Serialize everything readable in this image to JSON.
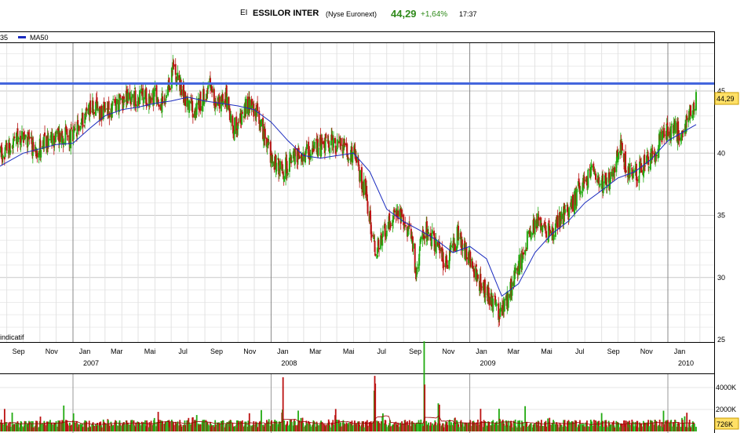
{
  "header": {
    "code": "EI",
    "name": "ESSILOR INTER",
    "market": "(Nyse Euronext)",
    "price": "44,29",
    "change": "+1,64%",
    "time": "17:37"
  },
  "legend": {
    "clipped_prefix": "35",
    "ma_label": "MA50"
  },
  "footnote": "indicatif",
  "price_badge": "44,29",
  "volume_badge": "726K",
  "colors": {
    "up": "#22aa11",
    "down": "#bb1111",
    "ma": "#1a2bbf",
    "resistance": "#4466dd",
    "grid": "#d8d8d8"
  },
  "chart_data": {
    "type": "candlestick",
    "y_ticks": [
      "45",
      "40",
      "35",
      "30",
      "25"
    ],
    "ylim": [
      25,
      48.5
    ],
    "resistance_level": 45.6,
    "month_labels": [
      "Sep",
      "Nov",
      "Jan",
      "Mar",
      "Mai",
      "Jul",
      "Sep",
      "Nov",
      "Jan",
      "Mar",
      "Mai",
      "Jul",
      "Sep",
      "Nov",
      "Jan",
      "Mar",
      "Mai",
      "Jul",
      "Sep",
      "Nov",
      "Jan"
    ],
    "year_labels": [
      "2007",
      "2008",
      "2009",
      "2010"
    ],
    "close_path": [
      [
        "2006-08-01",
        38.8
      ],
      [
        "2006-09-01",
        40.5
      ],
      [
        "2006-10-01",
        41.3
      ],
      [
        "2006-10-20",
        40.3
      ],
      [
        "2006-11-15",
        40.8
      ],
      [
        "2006-12-10",
        41.5
      ],
      [
        "2007-01-01",
        41.2
      ],
      [
        "2007-02-01",
        43.8
      ],
      [
        "2007-03-01",
        43.2
      ],
      [
        "2007-04-01",
        44.2
      ],
      [
        "2007-05-01",
        44.6
      ],
      [
        "2007-06-01",
        44.5
      ],
      [
        "2007-06-20",
        43.8
      ],
      [
        "2007-07-05",
        47.0
      ],
      [
        "2007-07-25",
        44.5
      ],
      [
        "2007-08-10",
        43.5
      ],
      [
        "2007-08-25",
        44.2
      ],
      [
        "2007-09-10",
        45.3
      ],
      [
        "2007-09-25",
        43.8
      ],
      [
        "2007-10-10",
        44.5
      ],
      [
        "2007-10-25",
        42.0
      ],
      [
        "2007-11-10",
        43.2
      ],
      [
        "2007-11-25",
        44.2
      ],
      [
        "2007-12-10",
        42.8
      ],
      [
        "2007-12-31",
        39.8
      ],
      [
        "2008-01-20",
        38.5
      ],
      [
        "2008-02-10",
        39.5
      ],
      [
        "2008-03-01",
        40.0
      ],
      [
        "2008-03-20",
        40.2
      ],
      [
        "2008-04-10",
        40.8
      ],
      [
        "2008-04-25",
        40.8
      ],
      [
        "2008-05-15",
        40.5
      ],
      [
        "2008-06-01",
        40.0
      ],
      [
        "2008-06-25",
        36.5
      ],
      [
        "2008-07-10",
        32.0
      ],
      [
        "2008-07-25",
        33.5
      ],
      [
        "2008-08-15",
        35.2
      ],
      [
        "2008-09-01",
        34.5
      ],
      [
        "2008-09-15",
        33.5
      ],
      [
        "2008-09-25",
        30.0
      ],
      [
        "2008-10-05",
        34.0
      ],
      [
        "2008-10-20",
        33.5
      ],
      [
        "2008-11-05",
        32.0
      ],
      [
        "2008-11-20",
        31.0
      ],
      [
        "2008-12-10",
        33.5
      ],
      [
        "2008-12-31",
        31.5
      ],
      [
        "2009-01-15",
        30.0
      ],
      [
        "2009-02-05",
        28.5
      ],
      [
        "2009-02-25",
        27.2
      ],
      [
        "2009-03-10",
        28.0
      ],
      [
        "2009-03-25",
        30.0
      ],
      [
        "2009-04-10",
        32.0
      ],
      [
        "2009-04-25",
        34.0
      ],
      [
        "2009-05-10",
        34.5
      ],
      [
        "2009-06-01",
        33.5
      ],
      [
        "2009-06-20",
        34.8
      ],
      [
        "2009-07-05",
        35.5
      ],
      [
        "2009-07-25",
        37.5
      ],
      [
        "2009-08-15",
        38.5
      ],
      [
        "2009-09-01",
        37.5
      ],
      [
        "2009-09-20",
        37.8
      ],
      [
        "2009-10-05",
        40.5
      ],
      [
        "2009-10-20",
        38.5
      ],
      [
        "2009-11-05",
        38.5
      ],
      [
        "2009-11-25",
        39.5
      ],
      [
        "2009-12-10",
        40.5
      ],
      [
        "2009-12-25",
        41.5
      ],
      [
        "2010-01-10",
        42.0
      ],
      [
        "2010-01-25",
        41.5
      ],
      [
        "2010-02-10",
        43.5
      ],
      [
        "2010-02-22",
        44.29
      ]
    ],
    "ma50_path": [
      [
        "2006-08-01",
        38.5
      ],
      [
        "2006-10-01",
        40.0
      ],
      [
        "2006-12-01",
        40.7
      ],
      [
        "2007-01-01",
        40.8
      ],
      [
        "2007-02-01",
        42.0
      ],
      [
        "2007-03-01",
        43.0
      ],
      [
        "2007-04-01",
        43.5
      ],
      [
        "2007-05-01",
        43.7
      ],
      [
        "2007-06-01",
        44.0
      ],
      [
        "2007-07-01",
        44.2
      ],
      [
        "2007-08-01",
        44.5
      ],
      [
        "2007-09-01",
        44.2
      ],
      [
        "2007-10-01",
        44.0
      ],
      [
        "2007-11-01",
        43.8
      ],
      [
        "2007-12-01",
        43.5
      ],
      [
        "2008-01-01",
        42.5
      ],
      [
        "2008-02-01",
        41.0
      ],
      [
        "2008-03-01",
        39.8
      ],
      [
        "2008-04-01",
        39.6
      ],
      [
        "2008-05-01",
        39.8
      ],
      [
        "2008-06-01",
        40.0
      ],
      [
        "2008-07-01",
        38.5
      ],
      [
        "2008-08-01",
        35.5
      ],
      [
        "2008-09-01",
        34.5
      ],
      [
        "2008-10-01",
        33.8
      ],
      [
        "2008-11-01",
        33.0
      ],
      [
        "2008-12-01",
        32.0
      ],
      [
        "2009-01-01",
        32.5
      ],
      [
        "2009-02-01",
        31.5
      ],
      [
        "2009-03-01",
        28.5
      ],
      [
        "2009-04-01",
        29.5
      ],
      [
        "2009-05-01",
        32.0
      ],
      [
        "2009-06-01",
        33.5
      ],
      [
        "2009-07-01",
        34.5
      ],
      [
        "2009-08-01",
        36.0
      ],
      [
        "2009-09-01",
        37.0
      ],
      [
        "2009-10-01",
        38.0
      ],
      [
        "2009-11-01",
        38.5
      ],
      [
        "2009-12-01",
        39.5
      ],
      [
        "2010-01-01",
        41.0
      ],
      [
        "2010-02-22",
        42.3
      ]
    ],
    "x_range": [
      "2006-08-01",
      "2010-03-01"
    ],
    "volume_ticks": [
      "4000K",
      "2000K"
    ],
    "volume_range": [
      0,
      5000
    ],
    "volume_avg": 800,
    "volume_spikes": [
      [
        "2008-01-22",
        2400
      ],
      [
        "2008-07-10",
        5200
      ],
      [
        "2008-07-25",
        1800
      ],
      [
        "2008-10-10",
        4500
      ],
      [
        "2008-11-05",
        2700
      ],
      [
        "2008-12-05",
        1500
      ],
      [
        "2007-08-10",
        1400
      ],
      [
        "2009-02-25",
        1300
      ]
    ]
  }
}
